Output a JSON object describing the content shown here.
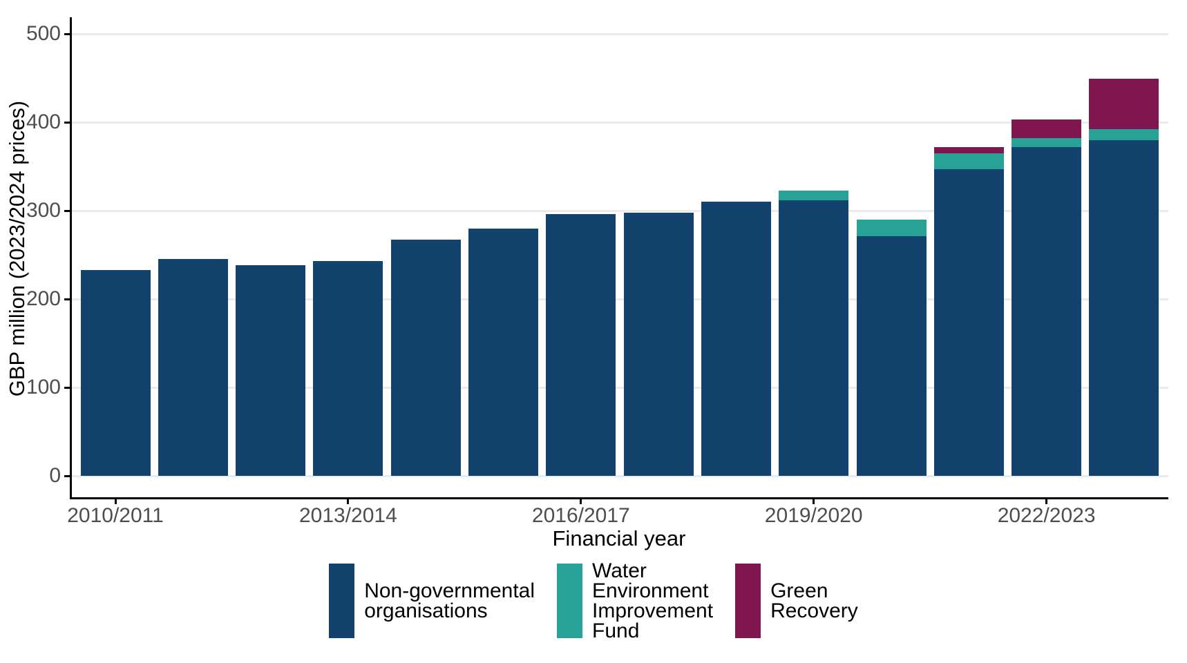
{
  "chart_data": {
    "type": "bar",
    "stacked": true,
    "title": "",
    "xlabel": "Financial year",
    "ylabel": "GBP million (2023/2024 prices)",
    "categories": [
      "2010/2011",
      "2011/2012",
      "2012/2013",
      "2013/2014",
      "2014/2015",
      "2015/2016",
      "2016/2017",
      "2017/2018",
      "2018/2019",
      "2019/2020",
      "2020/2021",
      "2021/2022",
      "2022/2023",
      "2023/2024"
    ],
    "x_tick_labels": [
      "2010/2011",
      "2013/2014",
      "2016/2017",
      "2019/2020",
      "2022/2023"
    ],
    "x_tick_indices": [
      0,
      3,
      6,
      9,
      12
    ],
    "y_ticks": [
      0,
      100,
      200,
      300,
      400,
      500
    ],
    "ylim": [
      0,
      519
    ],
    "grid": "horizontal-major-only",
    "legend_position": "bottom",
    "series": [
      {
        "name": "Non-governmental organisations",
        "label_lines": "Non-governmental\norganisations",
        "color": "#12436D",
        "values": [
          233,
          245,
          238,
          243,
          267,
          280,
          296,
          298,
          310,
          312,
          271,
          347,
          372,
          380
        ]
      },
      {
        "name": "Water Environment Improvement Fund",
        "label_lines": "Water\nEnvironment\nImprovement\nFund",
        "color": "#28A197",
        "values": [
          0,
          0,
          0,
          0,
          0,
          0,
          0,
          0,
          0,
          11,
          19,
          18,
          10,
          12
        ]
      },
      {
        "name": "Green Recovery",
        "label_lines": "Green\nRecovery",
        "color": "#801650",
        "values": [
          0,
          0,
          0,
          0,
          0,
          0,
          0,
          0,
          0,
          0,
          0,
          7,
          21,
          57
        ]
      }
    ],
    "stacked_totals": [
      233,
      245,
      238,
      243,
      267,
      280,
      296,
      298,
      310,
      323,
      290,
      372,
      403,
      449
    ]
  },
  "colors": {
    "axis_line": "#000000",
    "gridline": "#ebebeb",
    "tick_label": "#4d4d4d",
    "background": "#ffffff"
  }
}
